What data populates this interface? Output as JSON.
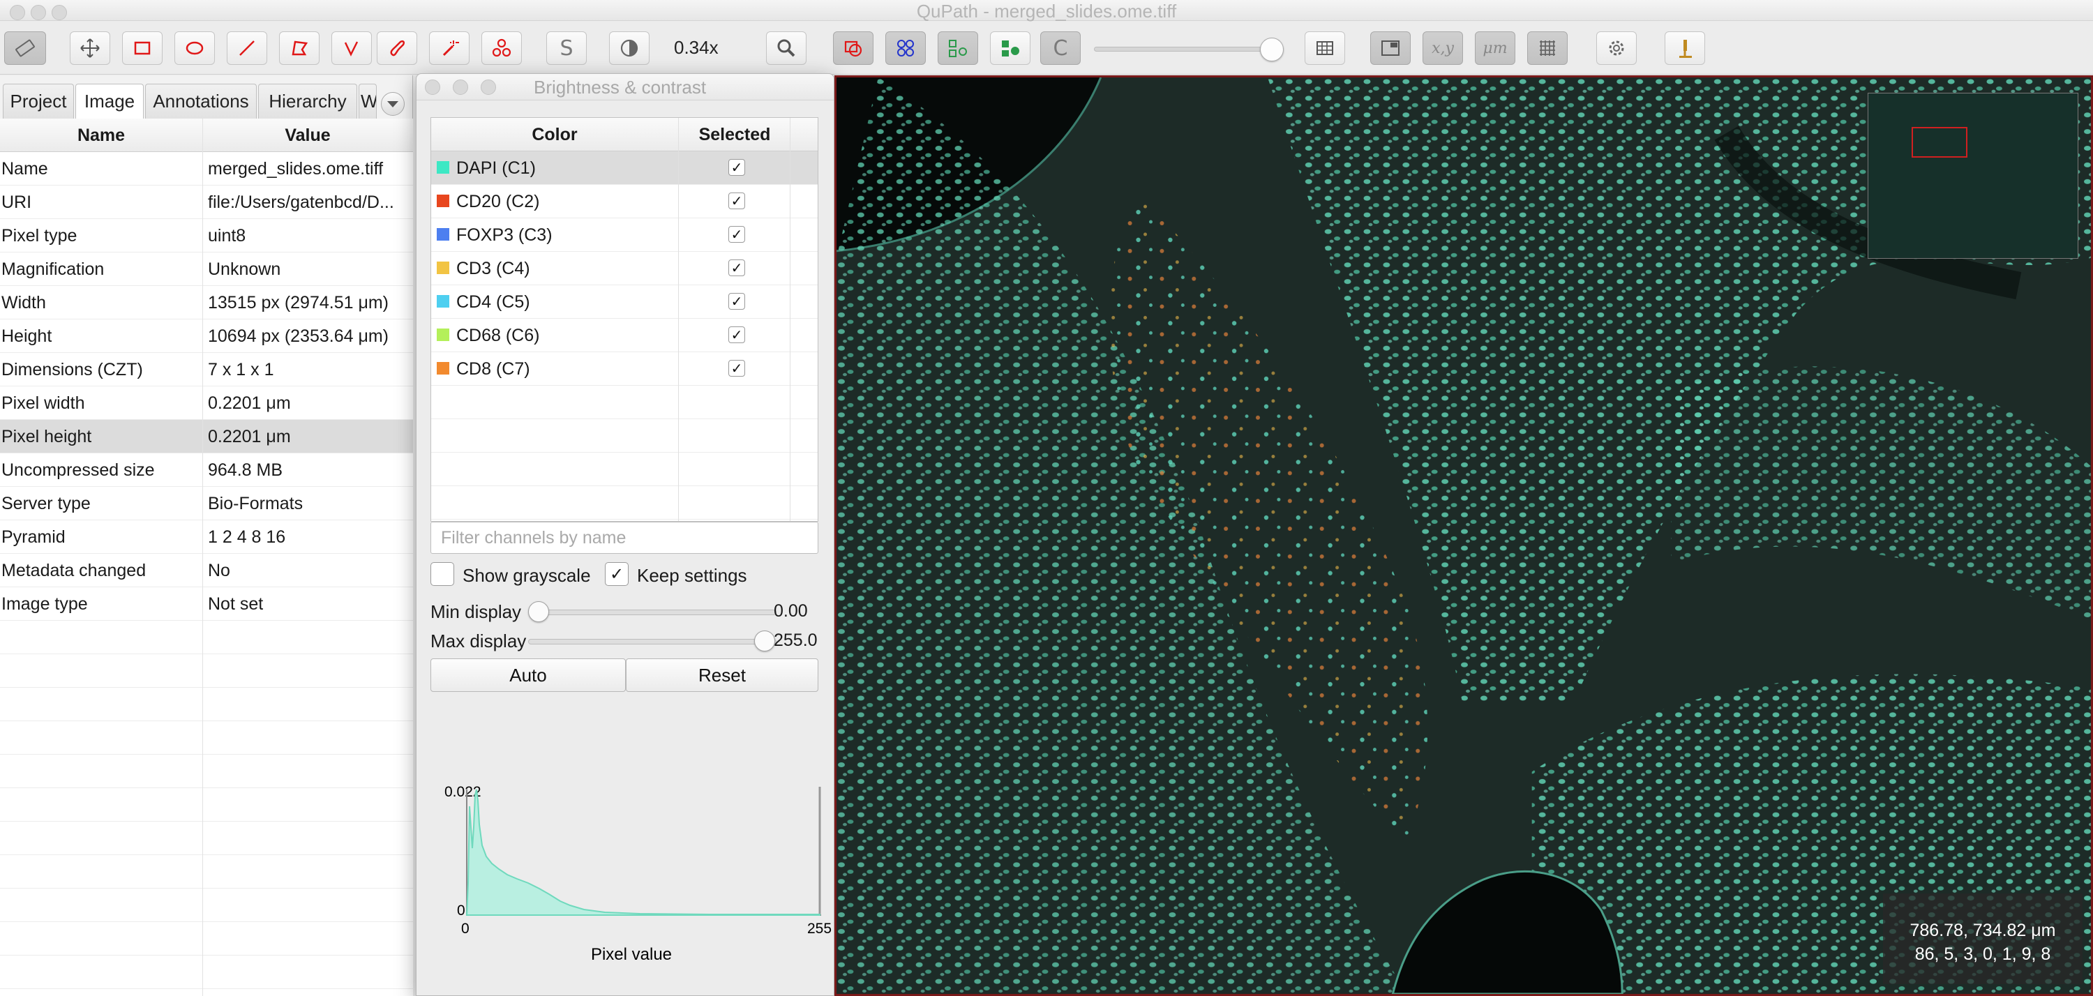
{
  "window": {
    "title": "QuPath - merged_slides.ome.tiff"
  },
  "toolbar": {
    "zoom_label": "0.34x",
    "cells_button_label": "S",
    "c_button_label": "C",
    "xy_button_label": "x,y",
    "um_button_label": "μm"
  },
  "left_panel": {
    "tabs": [
      "Project",
      "Image",
      "Annotations",
      "Hierarchy",
      "W"
    ],
    "active_tab": "Image",
    "columns": [
      "Name",
      "Value"
    ],
    "rows": [
      {
        "name": "Name",
        "value": "merged_slides.ome.tiff"
      },
      {
        "name": "URI",
        "value": "file:/Users/gatenbcd/D..."
      },
      {
        "name": "Pixel type",
        "value": "uint8"
      },
      {
        "name": "Magnification",
        "value": "Unknown"
      },
      {
        "name": "Width",
        "value": "13515 px (2974.51 μm)"
      },
      {
        "name": "Height",
        "value": "10694 px (2353.64 μm)"
      },
      {
        "name": "Dimensions (CZT)",
        "value": "7 x 1 x 1"
      },
      {
        "name": "Pixel width",
        "value": "0.2201 μm"
      },
      {
        "name": "Pixel height",
        "value": "0.2201 μm"
      },
      {
        "name": "Uncompressed size",
        "value": "964.8 MB"
      },
      {
        "name": "Server type",
        "value": "Bio-Formats"
      },
      {
        "name": "Pyramid",
        "value": "1 2 4 8 16"
      },
      {
        "name": "Metadata changed",
        "value": "No"
      },
      {
        "name": "Image type",
        "value": "Not set"
      }
    ]
  },
  "brightness_contrast": {
    "title": "Brightness & contrast",
    "columns": [
      "Color",
      "Selected"
    ],
    "channels": [
      {
        "name": "DAPI (C1)",
        "color": "#3de8c4",
        "selected": true
      },
      {
        "name": "CD20 (C2)",
        "color": "#e8461e",
        "selected": true
      },
      {
        "name": "FOXP3 (C3)",
        "color": "#4d7ff0",
        "selected": true
      },
      {
        "name": "CD3 (C4)",
        "color": "#f2c443",
        "selected": true
      },
      {
        "name": "CD4 (C5)",
        "color": "#4ecff0",
        "selected": true
      },
      {
        "name": "CD68 (C6)",
        "color": "#b4f05a",
        "selected": true
      },
      {
        "name": "CD8 (C7)",
        "color": "#f28a2e",
        "selected": true
      }
    ],
    "filter_placeholder": "Filter channels by name",
    "show_grayscale": {
      "label": "Show grayscale",
      "checked": false
    },
    "keep_settings": {
      "label": "Keep settings",
      "checked": true
    },
    "min_display": {
      "label": "Min display",
      "value": "0.00"
    },
    "max_display": {
      "label": "Max display",
      "value": "255.0"
    },
    "auto_button": "Auto",
    "reset_button": "Reset",
    "histogram": {
      "y_max_label": "0.022",
      "y_min_label": "0",
      "x_min_label": "0",
      "x_max_label": "255",
      "xlabel": "Pixel value"
    }
  },
  "viewer": {
    "coord_line1": "786.78, 734.82 μm",
    "coord_line2": "86, 5, 3, 0, 1, 9, 8"
  }
}
